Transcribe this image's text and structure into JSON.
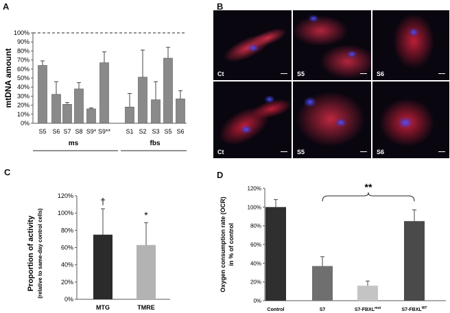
{
  "panels": {
    "A": {
      "letter": "A"
    },
    "B": {
      "letter": "B",
      "images": [
        {
          "label": "Ct"
        },
        {
          "label": "S5"
        },
        {
          "label": "S6"
        },
        {
          "label": "Ct"
        },
        {
          "label": "S5"
        },
        {
          "label": "S6"
        }
      ]
    },
    "C": {
      "letter": "C"
    },
    "D": {
      "letter": "D"
    }
  },
  "colors": {
    "bar_gray": "#8a8a8a",
    "mtg": "#2b2b2b",
    "tmre": "#b3b3b3",
    "d_bars": [
      "#2f2f2f",
      "#6f6f6f",
      "#c4c4c4",
      "#4a4a4a"
    ],
    "stain_red": "#d0203a",
    "stain_blue": "#3a3ad8"
  },
  "chart_data": [
    {
      "panel": "A",
      "type": "bar",
      "ylabel": "mtDNA amount",
      "ylim": [
        0,
        100
      ],
      "yticks": [
        "0%",
        "10%",
        "20%",
        "30%",
        "40%",
        "50%",
        "60%",
        "70%",
        "80%",
        "90%",
        "100%"
      ],
      "reference_line": 100,
      "categories": [
        "S5",
        "S6",
        "S7",
        "S8",
        "S9*",
        "S9**",
        "S1",
        "S2",
        "S3",
        "S5",
        "S6"
      ],
      "values": [
        64,
        32,
        21,
        38,
        16,
        67,
        18,
        51,
        26,
        72,
        27
      ],
      "errors": [
        5,
        14,
        2,
        7,
        1,
        12,
        15,
        30,
        20,
        12,
        9
      ],
      "groups": [
        {
          "name": "ms",
          "range": [
            0,
            5
          ]
        },
        {
          "name": "fbs",
          "range": [
            6,
            10
          ]
        }
      ]
    },
    {
      "panel": "C",
      "type": "bar",
      "ylabel": "Proportion of activity",
      "ylabel2": "(relative to same-day control cells)",
      "ylim": [
        0,
        120
      ],
      "yticks": [
        "0%",
        "20%",
        "40%",
        "60%",
        "80%",
        "100%",
        "120%"
      ],
      "categories": [
        "MTG",
        "TMRE"
      ],
      "values": [
        75,
        63
      ],
      "errors": [
        30,
        26
      ],
      "annotations": [
        "†",
        "*"
      ]
    },
    {
      "panel": "D",
      "type": "bar",
      "ylabel": "Oxygen consumption rate (OCR)",
      "ylabel2": "in % of control",
      "ylim": [
        0,
        120
      ],
      "yticks": [
        "0%",
        "20%",
        "40%",
        "60%",
        "80%",
        "100%",
        "120%"
      ],
      "categories": [
        "Control",
        "S7",
        "S7-FBXL",
        "S7-FBXL"
      ],
      "category_superscripts": [
        "",
        "",
        "mut",
        "WT"
      ],
      "values": [
        100,
        37,
        16,
        85
      ],
      "errors": [
        8,
        10,
        5,
        12
      ],
      "significance": {
        "text": "**",
        "from": 1,
        "to": 3
      }
    }
  ]
}
